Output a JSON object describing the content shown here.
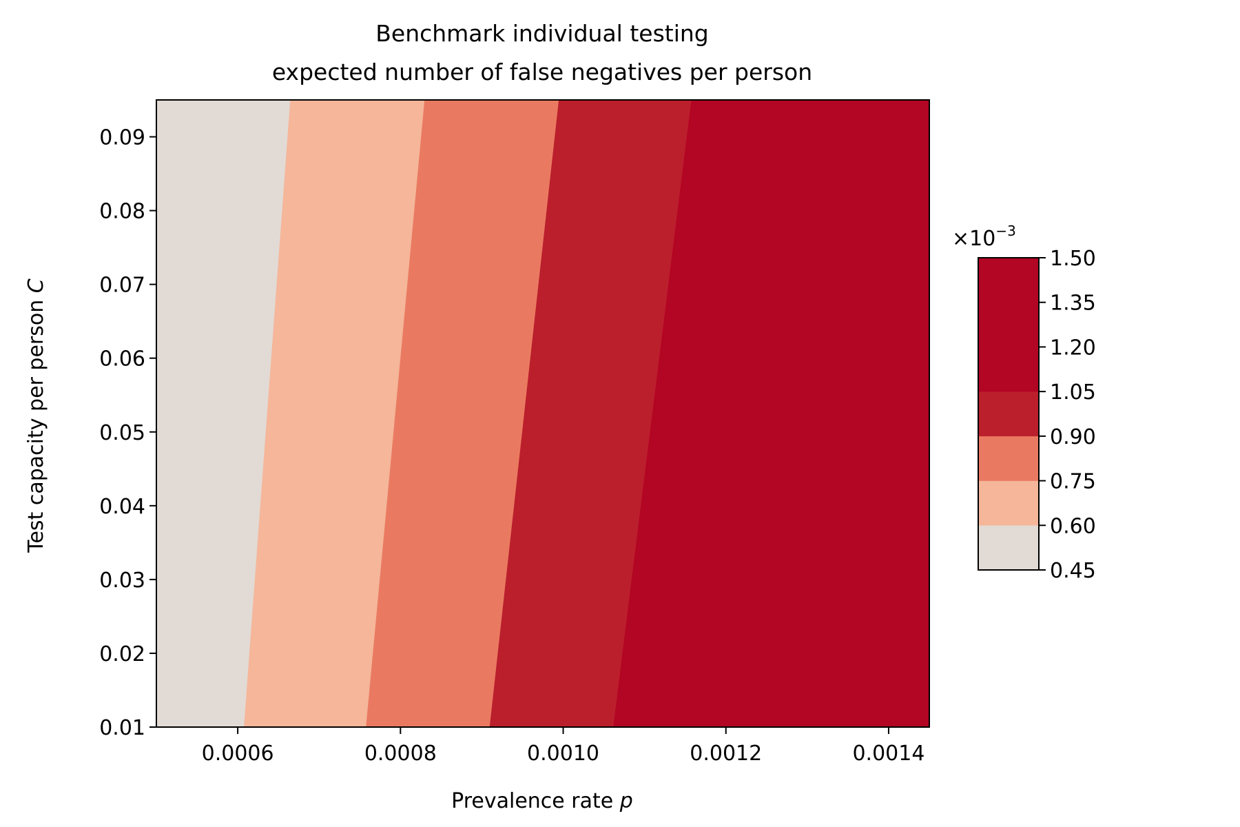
{
  "chart_data": {
    "type": "contour",
    "title_line1": "Benchmark individual testing",
    "title_line2": "expected number of false negatives per person",
    "xlabel": "Prevalence rate",
    "xlabel_var": "p",
    "ylabel": "Test capacity per person",
    "ylabel_var": "C",
    "xlim": [
      0.0005,
      0.00145
    ],
    "ylim": [
      0.01,
      0.095
    ],
    "x_ticks": [
      0.0006,
      0.0008,
      0.001,
      0.0012,
      0.0014
    ],
    "x_tick_labels": [
      "0.0006",
      "0.0008",
      "0.0010",
      "0.0012",
      "0.0014"
    ],
    "y_ticks": [
      0.01,
      0.02,
      0.03,
      0.04,
      0.05,
      0.06,
      0.07,
      0.08,
      0.09
    ],
    "y_tick_labels": [
      "0.01",
      "0.02",
      "0.03",
      "0.04",
      "0.05",
      "0.06",
      "0.07",
      "0.08",
      "0.09"
    ],
    "colorbar": {
      "multiplier_base": "×10",
      "multiplier_exp": "−3",
      "levels": [
        0.45,
        0.6,
        0.75,
        0.9,
        1.05,
        1.5
      ],
      "tick_values": [
        0.45,
        0.6,
        0.75,
        0.9,
        1.05,
        1.2,
        1.35,
        1.5
      ],
      "tick_labels": [
        "0.45",
        "0.60",
        "0.75",
        "0.90",
        "1.05",
        "1.20",
        "1.35",
        "1.50"
      ],
      "colors": [
        "#e2dad5",
        "#f5b69a",
        "#e97a61",
        "#bb1f2c",
        "#b30524"
      ]
    },
    "bands": [
      {
        "x_bottom": [
          0.0005,
          0.000608
        ],
        "x_top": [
          0.0005,
          0.000665
        ]
      },
      {
        "x_bottom": [
          0.000608,
          0.000758
        ],
        "x_top": [
          0.000665,
          0.00083
        ]
      },
      {
        "x_bottom": [
          0.000758,
          0.00091
        ],
        "x_top": [
          0.00083,
          0.000995
        ]
      },
      {
        "x_bottom": [
          0.00091,
          0.001062
        ],
        "x_top": [
          0.000995,
          0.001158
        ]
      },
      {
        "x_bottom": [
          0.001062,
          0.00145
        ],
        "x_top": [
          0.001158,
          0.00145
        ]
      }
    ]
  }
}
